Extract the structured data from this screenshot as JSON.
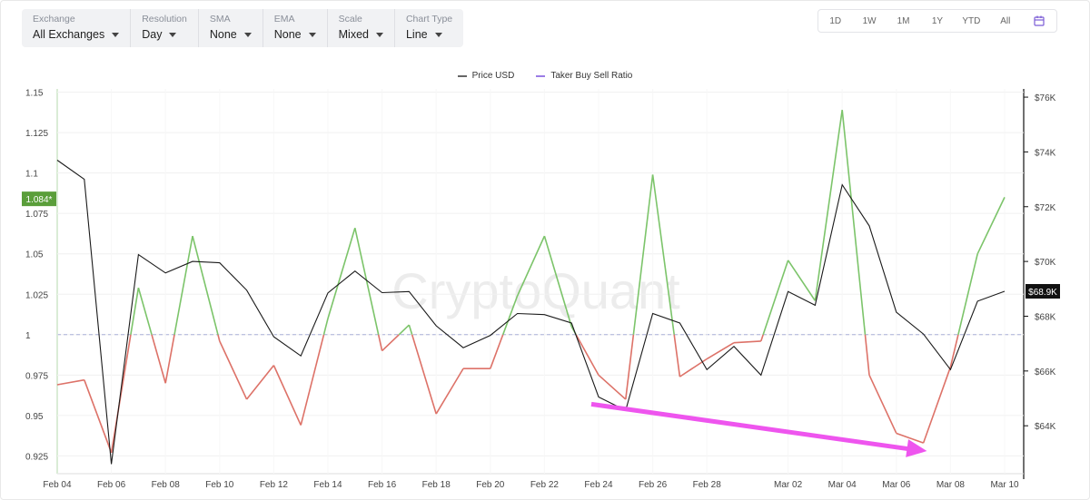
{
  "toolbar": {
    "controls": [
      {
        "label": "Exchange",
        "value": "All Exchanges"
      },
      {
        "label": "Resolution",
        "value": "Day"
      },
      {
        "label": "SMA",
        "value": "None"
      },
      {
        "label": "EMA",
        "value": "None"
      },
      {
        "label": "Scale",
        "value": "Mixed"
      },
      {
        "label": "Chart Type",
        "value": "Line"
      }
    ],
    "ranges": [
      "1D",
      "1W",
      "1M",
      "1Y",
      "YTD",
      "All"
    ],
    "calendar_icon": "calendar-icon"
  },
  "legend": [
    {
      "name": "Price USD",
      "color": "#555555"
    },
    {
      "name": "Taker Buy Sell Ratio",
      "color": "#9b7ce6"
    }
  ],
  "watermark": "CryptoQuant",
  "colors": {
    "above": "#7cc46a",
    "below": "#dd7268",
    "price": "#1a1a1a",
    "annotation": "#ee55ee",
    "badge_left": "#5a9e3a"
  },
  "chart_data": {
    "type": "line",
    "x": [
      "Feb 04",
      "Feb 05",
      "Feb 06",
      "Feb 07",
      "Feb 08",
      "Feb 09",
      "Feb 10",
      "Feb 11",
      "Feb 12",
      "Feb 13",
      "Feb 14",
      "Feb 15",
      "Feb 16",
      "Feb 17",
      "Feb 18",
      "Feb 19",
      "Feb 20",
      "Feb 21",
      "Feb 22",
      "Feb 23",
      "Feb 24",
      "Feb 25",
      "Feb 26",
      "Feb 27",
      "Feb 28",
      "Feb 29",
      "Mar 01",
      "Mar 02",
      "Mar 03",
      "Mar 04",
      "Mar 05",
      "Mar 06",
      "Mar 07",
      "Mar 08",
      "Mar 09",
      "Mar 10"
    ],
    "x_tick_labels": [
      "Feb 04",
      "Feb 06",
      "Feb 08",
      "Feb 10",
      "Feb 12",
      "Feb 14",
      "Feb 16",
      "Feb 18",
      "Feb 20",
      "Feb 22",
      "Feb 24",
      "Feb 26",
      "Feb 28",
      "Mar 02",
      "Mar 04",
      "Mar 06",
      "Mar 08",
      "Mar 10"
    ],
    "series": [
      {
        "name": "Taker Buy Sell Ratio",
        "axis": "left",
        "values": [
          0.969,
          0.972,
          0.927,
          1.029,
          0.97,
          1.061,
          0.996,
          0.96,
          0.981,
          0.944,
          1.01,
          1.066,
          0.99,
          1.006,
          0.951,
          0.979,
          0.979,
          1.024,
          1.061,
          1.005,
          0.975,
          0.96,
          1.099,
          0.974,
          0.985,
          0.995,
          0.996,
          1.046,
          1.021,
          1.139,
          0.975,
          0.939,
          0.933,
          0.98,
          1.05,
          1.085
        ]
      },
      {
        "name": "Price USD",
        "axis": "right",
        "values": [
          73700,
          73000,
          62600,
          70250,
          69580,
          70000,
          69950,
          68950,
          67250,
          66550,
          68850,
          69650,
          68860,
          68900,
          67650,
          66850,
          67300,
          68100,
          68060,
          67750,
          65050,
          64560,
          68100,
          67750,
          66050,
          66900,
          65850,
          68900,
          68400,
          72800,
          71300,
          68150,
          67350,
          66050,
          68550,
          68910
        ]
      }
    ],
    "left_ticks": [
      1.15,
      1.125,
      1.1,
      1.075,
      1.05,
      1.025,
      1,
      0.975,
      0.95,
      0.925
    ],
    "right_ticks": [
      "$76K",
      "$74K",
      "$72K",
      "$70K",
      "$68K",
      "$66K",
      "$64K"
    ],
    "ylim_left": [
      0.914,
      1.152
    ],
    "ylim_right": [
      62250,
      76300
    ],
    "reference_line": 1,
    "current_left": "1.084*",
    "current_right": "$68.9K",
    "legend_position": "top-center",
    "annotation": {
      "type": "arrow",
      "from_date": "Feb 24",
      "from_value": 0.957,
      "to_date": "Mar 08",
      "to_value": 0.928,
      "axis": "left"
    }
  }
}
